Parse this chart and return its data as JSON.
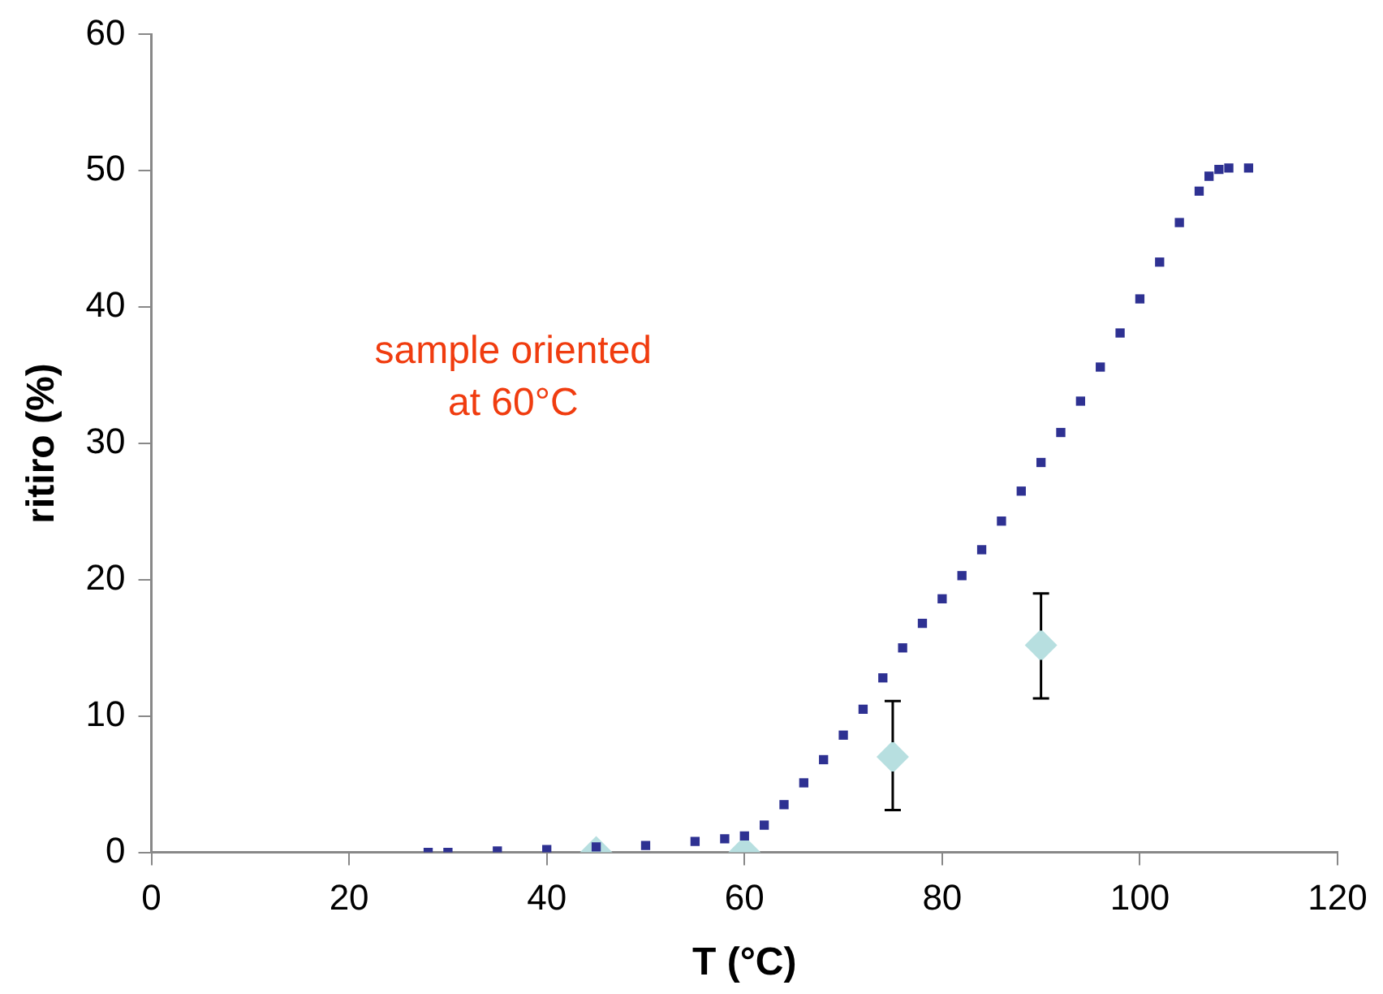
{
  "chart_data": {
    "type": "scatter",
    "xlabel": "T (°C)",
    "ylabel": "ritiro (%)",
    "xlim": [
      0,
      120
    ],
    "xticks": [
      0,
      20,
      40,
      60,
      80,
      100,
      120
    ],
    "ylim": [
      0,
      60
    ],
    "yticks": [
      0,
      10,
      20,
      30,
      40,
      50,
      60
    ],
    "grid": false,
    "legend": false,
    "annotations": [
      "sample oriented\nat 60°C"
    ],
    "series": [
      {
        "color": "#2e3192",
        "marker": "square",
        "x": [
          28,
          30,
          35,
          40,
          45,
          50,
          55,
          58,
          60,
          62,
          64,
          66,
          68,
          70,
          72,
          74,
          76,
          78,
          80,
          82,
          84,
          86,
          88,
          90,
          92,
          94,
          96,
          98,
          100,
          102,
          104,
          106,
          107,
          108,
          109,
          111
        ],
        "values": [
          0,
          0,
          0.1,
          0.2,
          0.4,
          0.5,
          0.8,
          1,
          1.2,
          2,
          3.5,
          5.1,
          6.8,
          8.6,
          10.5,
          12.8,
          15,
          16.8,
          18.6,
          20.3,
          22.2,
          24.3,
          26.5,
          28.6,
          30.8,
          33.1,
          35.6,
          38.1,
          40.6,
          43.3,
          46.2,
          48.5,
          49.6,
          50.1,
          50.2,
          50.2
        ]
      },
      {
        "color": "#b7dfe0",
        "marker": "diamond",
        "x": [
          45,
          60,
          75,
          90
        ],
        "values": [
          0,
          0,
          7,
          15.2
        ],
        "errors": [
          null,
          null,
          [
            3.1,
            11.1
          ],
          [
            11.3,
            19
          ]
        ]
      }
    ]
  }
}
